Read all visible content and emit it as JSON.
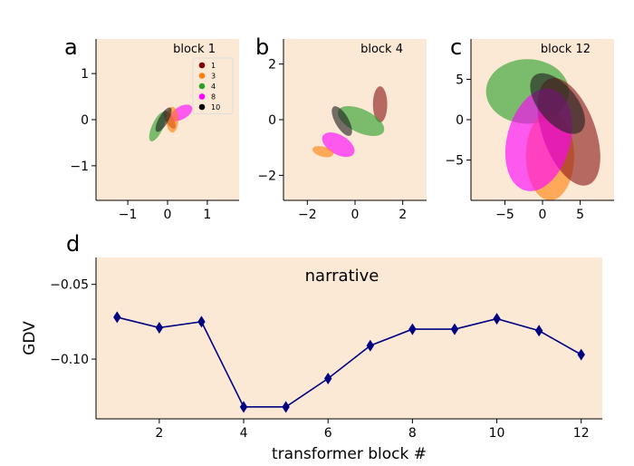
{
  "chart_data": [
    {
      "panel": "a",
      "type": "scatter",
      "title": "block 1",
      "xlim": [
        -1.8,
        1.8
      ],
      "ylim": [
        -1.75,
        1.75
      ],
      "xticks": [
        -1,
        0,
        1
      ],
      "yticks": [
        -1,
        0,
        1
      ],
      "background": "#fbe9d6",
      "legend": {
        "placement": "top-right",
        "entries": [
          {
            "label": "1",
            "color": "#7f0000"
          },
          {
            "label": "3",
            "color": "#ff7f0e"
          },
          {
            "label": "4",
            "color": "#2ca02c"
          },
          {
            "label": "8",
            "color": "#ff00ff"
          },
          {
            "label": "10",
            "color": "#000000"
          }
        ]
      },
      "ellipses": [
        {
          "class": "1",
          "cx": 0.05,
          "cy": 0.0,
          "rx": 0.1,
          "ry": 0.22,
          "angle": 30,
          "color": "#8b1a1a"
        },
        {
          "class": "8",
          "cx": 0.35,
          "cy": 0.15,
          "rx": 0.3,
          "ry": 0.14,
          "angle": 30,
          "color": "#ff00ff"
        },
        {
          "class": "3",
          "cx": 0.12,
          "cy": 0.0,
          "rx": 0.15,
          "ry": 0.28,
          "angle": 0,
          "color": "#ff7f0e"
        },
        {
          "class": "4",
          "cx": -0.25,
          "cy": -0.15,
          "rx": 0.14,
          "ry": 0.35,
          "angle": -25,
          "color": "#2ca02c"
        },
        {
          "class": "10",
          "cx": -0.1,
          "cy": 0.0,
          "rx": 0.12,
          "ry": 0.3,
          "angle": -30,
          "color": "#202020"
        }
      ]
    },
    {
      "panel": "b",
      "type": "scatter",
      "title": "block 4",
      "xlim": [
        -3,
        3
      ],
      "ylim": [
        -2.9,
        2.9
      ],
      "xticks": [
        -2,
        0,
        2
      ],
      "yticks": [
        -2,
        0,
        2
      ],
      "background": "#fbe9d6",
      "ellipses": [
        {
          "class": "1",
          "cx": 1.05,
          "cy": 0.55,
          "rx": 0.3,
          "ry": 0.65,
          "angle": 0,
          "color": "#8b1a1a"
        },
        {
          "class": "4",
          "cx": 0.25,
          "cy": -0.05,
          "rx": 1.05,
          "ry": 0.42,
          "angle": -25,
          "color": "#2ca02c"
        },
        {
          "class": "10",
          "cx": -0.55,
          "cy": -0.05,
          "rx": 0.28,
          "ry": 0.6,
          "angle": 30,
          "color": "#202020"
        },
        {
          "class": "8",
          "cx": -0.7,
          "cy": -0.9,
          "rx": 0.75,
          "ry": 0.35,
          "angle": -30,
          "color": "#ff00ff"
        },
        {
          "class": "3",
          "cx": -1.35,
          "cy": -1.15,
          "rx": 0.45,
          "ry": 0.18,
          "angle": -15,
          "color": "#ff7f0e"
        }
      ]
    },
    {
      "panel": "c",
      "type": "scatter",
      "title": "block 12",
      "xlim": [
        -9.5,
        9.5
      ],
      "ylim": [
        -10,
        10
      ],
      "xticks": [
        -5,
        0,
        5
      ],
      "yticks": [
        -5,
        0,
        5
      ],
      "background": "#fbe9d6",
      "ellipses": [
        {
          "class": "4",
          "cx": -2.0,
          "cy": 3.5,
          "rx": 5.5,
          "ry": 4.0,
          "angle": 0,
          "color": "#2ca02c"
        },
        {
          "class": "3",
          "cx": 1.0,
          "cy": -4.5,
          "rx": 3.2,
          "ry": 5.5,
          "angle": 0,
          "color": "#ff7f0e"
        },
        {
          "class": "1",
          "cx": 3.5,
          "cy": -1.5,
          "rx": 3.5,
          "ry": 7.0,
          "angle": 20,
          "color": "#8b1a1a"
        },
        {
          "class": "8",
          "cx": -0.5,
          "cy": -2.5,
          "rx": 4.2,
          "ry": 6.5,
          "angle": -15,
          "color": "#ff00ff"
        },
        {
          "class": "10",
          "cx": 2.0,
          "cy": 2.0,
          "rx": 2.5,
          "ry": 4.5,
          "angle": 40,
          "color": "#202020"
        }
      ]
    },
    {
      "panel": "d",
      "type": "line",
      "annotation": "narrative",
      "xlabel": "transformer block #",
      "ylabel": "GDV",
      "xlim": [
        0.5,
        12.5
      ],
      "ylim": [
        -0.14,
        -0.032
      ],
      "xticks": [
        2,
        4,
        6,
        8,
        10,
        12
      ],
      "yticks": [
        -0.05,
        -0.1
      ],
      "ytick_labels": [
        "−0.05",
        "−0.10"
      ],
      "background": "#fbe9d6",
      "line_color": "#000080",
      "marker": "diamond",
      "x": [
        1,
        2,
        3,
        4,
        5,
        6,
        7,
        8,
        9,
        10,
        11,
        12
      ],
      "y": [
        -0.072,
        -0.079,
        -0.075,
        -0.132,
        -0.132,
        -0.113,
        -0.091,
        -0.08,
        -0.08,
        -0.073,
        -0.081,
        -0.097
      ]
    }
  ]
}
